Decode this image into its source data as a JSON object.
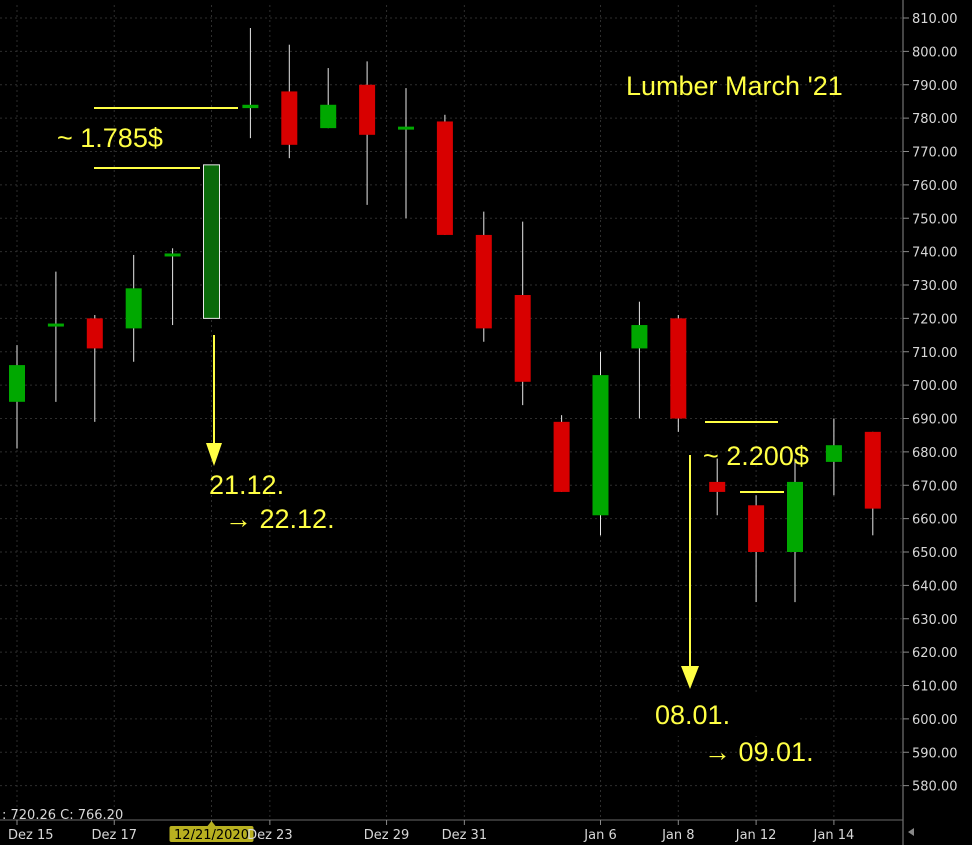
{
  "chart_data": {
    "type": "candlestick",
    "title": "Lumber March '21",
    "ylim": [
      573,
      816
    ],
    "y_ticks": [
      580,
      590,
      600,
      610,
      620,
      630,
      640,
      650,
      660,
      670,
      680,
      690,
      700,
      710,
      720,
      730,
      740,
      750,
      760,
      770,
      780,
      790,
      800,
      810
    ],
    "y_tick_labels": [
      "580.00",
      "590.00",
      "600.00",
      "610.00",
      "620.00",
      "630.00",
      "640.00",
      "650.00",
      "660.00",
      "670.00",
      "680.00",
      "690.00",
      "700.00",
      "710.00",
      "720.00",
      "730.00",
      "740.00",
      "750.00",
      "760.00",
      "770.00",
      "780.00",
      "790.00",
      "800.00",
      "810.00"
    ],
    "x_tick_labels": [
      {
        "label": "Dez 15",
        "index": 0
      },
      {
        "label": "Dez 17",
        "index": 2.5
      },
      {
        "label": "12/21/2020",
        "index": 5,
        "highlight": true
      },
      {
        "label": "Dez 23",
        "index": 6.5
      },
      {
        "label": "Dez 29",
        "index": 9.5
      },
      {
        "label": "Dez 31",
        "index": 11.5
      },
      {
        "label": "Jan 6",
        "index": 15
      },
      {
        "label": "Jan 8",
        "index": 17
      },
      {
        "label": "Jan 12",
        "index": 19
      },
      {
        "label": "Jan 14",
        "index": 21
      }
    ],
    "candles": [
      {
        "open": 695,
        "high": 712,
        "low": 681,
        "close": 706
      },
      {
        "open": 718,
        "high": 734,
        "low": 695,
        "close": 718
      },
      {
        "open": 720,
        "high": 721,
        "low": 689,
        "close": 711
      },
      {
        "open": 717,
        "high": 739,
        "low": 707,
        "close": 729
      },
      {
        "open": 739,
        "high": 741,
        "low": 718,
        "close": 739
      },
      {
        "open": 720,
        "high": 766,
        "low": 720,
        "close": 766,
        "outline": true
      },
      {
        "open": 783,
        "high": 807,
        "low": 774,
        "close": 784
      },
      {
        "open": 788,
        "high": 802,
        "low": 768,
        "close": 772
      },
      {
        "open": 777,
        "high": 795,
        "low": 777,
        "close": 784
      },
      {
        "open": 790,
        "high": 797,
        "low": 754,
        "close": 775
      },
      {
        "open": 777,
        "high": 789,
        "low": 750,
        "close": 777
      },
      {
        "open": 779,
        "high": 781,
        "low": 745,
        "close": 745
      },
      {
        "open": 745,
        "high": 752,
        "low": 713,
        "close": 717
      },
      {
        "open": 727,
        "high": 749,
        "low": 694,
        "close": 701
      },
      {
        "open": 689,
        "high": 691,
        "low": 668,
        "close": 668
      },
      {
        "open": 661,
        "high": 710,
        "low": 655,
        "close": 703
      },
      {
        "open": 711,
        "high": 725,
        "low": 690,
        "close": 718
      },
      {
        "open": 720,
        "high": 721,
        "low": 686,
        "close": 690
      },
      {
        "open": 671,
        "high": 678,
        "low": 661,
        "close": 668
      },
      {
        "open": 664,
        "high": 667,
        "low": 635,
        "close": 650
      },
      {
        "open": 650,
        "high": 678,
        "low": 635,
        "close": 671
      },
      {
        "open": 677,
        "high": 690,
        "low": 667,
        "close": 682
      },
      {
        "open": 686,
        "high": 686,
        "low": 655,
        "close": 663
      }
    ],
    "ohlc_readout": ": 720.26  C: 766.20",
    "annotations": {
      "price_left": "~ 1.785$",
      "date_left_1": "21.12.",
      "date_left_2": "→ 22.12.",
      "price_right": "~ 2.200$",
      "date_right_1": "08.01.",
      "date_right_2": "→ 09.01."
    },
    "colors": {
      "up": "#00a800",
      "down": "#d80000",
      "annotation": "#ffff44",
      "grid": "#2e2e2e",
      "axis_text": "#d8d8d8",
      "date_highlight": "#b8b020"
    }
  }
}
